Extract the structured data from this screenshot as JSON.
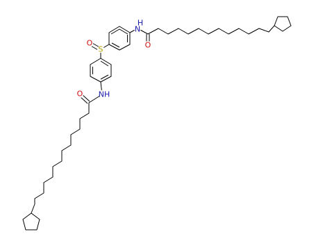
{
  "atoms": [
    "N",
    "H",
    "S",
    "O",
    "O",
    "NH",
    "O"
  ]
}
